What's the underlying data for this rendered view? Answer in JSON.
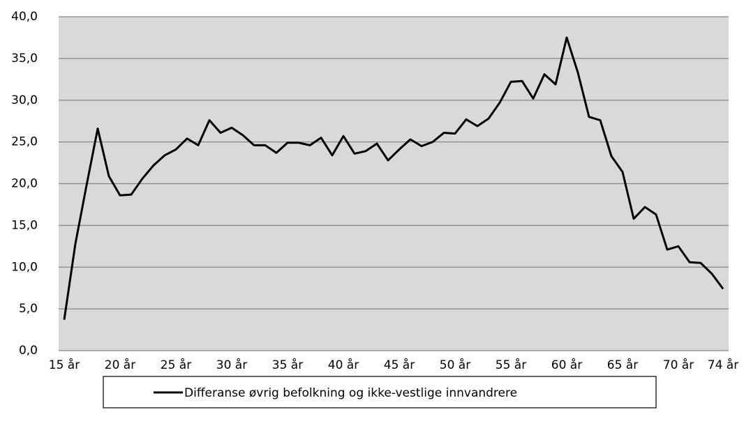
{
  "chart_data": {
    "type": "line",
    "categories": [
      "15 år",
      null,
      null,
      null,
      null,
      "20 år",
      null,
      null,
      null,
      null,
      "25 år",
      null,
      null,
      null,
      null,
      "30 år",
      null,
      null,
      null,
      null,
      "35 år",
      null,
      null,
      null,
      null,
      "40 år",
      null,
      null,
      null,
      null,
      "45 år",
      null,
      null,
      null,
      null,
      "50 år",
      null,
      null,
      null,
      null,
      "55 år",
      null,
      null,
      null,
      null,
      "60 år",
      null,
      null,
      null,
      null,
      "65 år",
      null,
      null,
      null,
      null,
      "70 år",
      null,
      null,
      null,
      "74 år"
    ],
    "series": [
      {
        "name": "Differanse øvrig befolkning og ikke-vestlige innvandrere",
        "color": "#000000",
        "values": [
          3.7,
          12.8,
          19.8,
          26.6,
          20.9,
          18.6,
          18.7,
          20.6,
          22.2,
          23.4,
          24.1,
          25.4,
          24.6,
          27.6,
          26.1,
          26.7,
          25.8,
          24.6,
          24.6,
          23.7,
          24.9,
          24.9,
          24.6,
          25.5,
          23.4,
          25.7,
          23.6,
          23.9,
          24.8,
          22.8,
          24.1,
          25.3,
          24.5,
          25.0,
          26.1,
          26.0,
          27.7,
          26.9,
          27.8,
          29.7,
          32.2,
          32.3,
          30.2,
          33.1,
          31.9,
          37.5,
          33.3,
          28.0,
          27.6,
          23.3,
          21.4,
          15.8,
          17.2,
          16.3,
          12.1,
          12.5,
          10.6,
          10.5,
          9.2,
          7.4
        ]
      }
    ],
    "ylim": [
      0,
      40
    ],
    "yticks": [
      {
        "value": 0,
        "label": "0,0"
      },
      {
        "value": 5,
        "label": "5,0"
      },
      {
        "value": 10,
        "label": "10,0"
      },
      {
        "value": 15,
        "label": "15,0"
      },
      {
        "value": 20,
        "label": "20,0"
      },
      {
        "value": 25,
        "label": "25,0"
      },
      {
        "value": 30,
        "label": "30,0"
      },
      {
        "value": 35,
        "label": "35,0"
      },
      {
        "value": 40,
        "label": "40,0"
      }
    ],
    "grid": true,
    "legend": "bottom",
    "plot_background": "#d9d9d9"
  }
}
